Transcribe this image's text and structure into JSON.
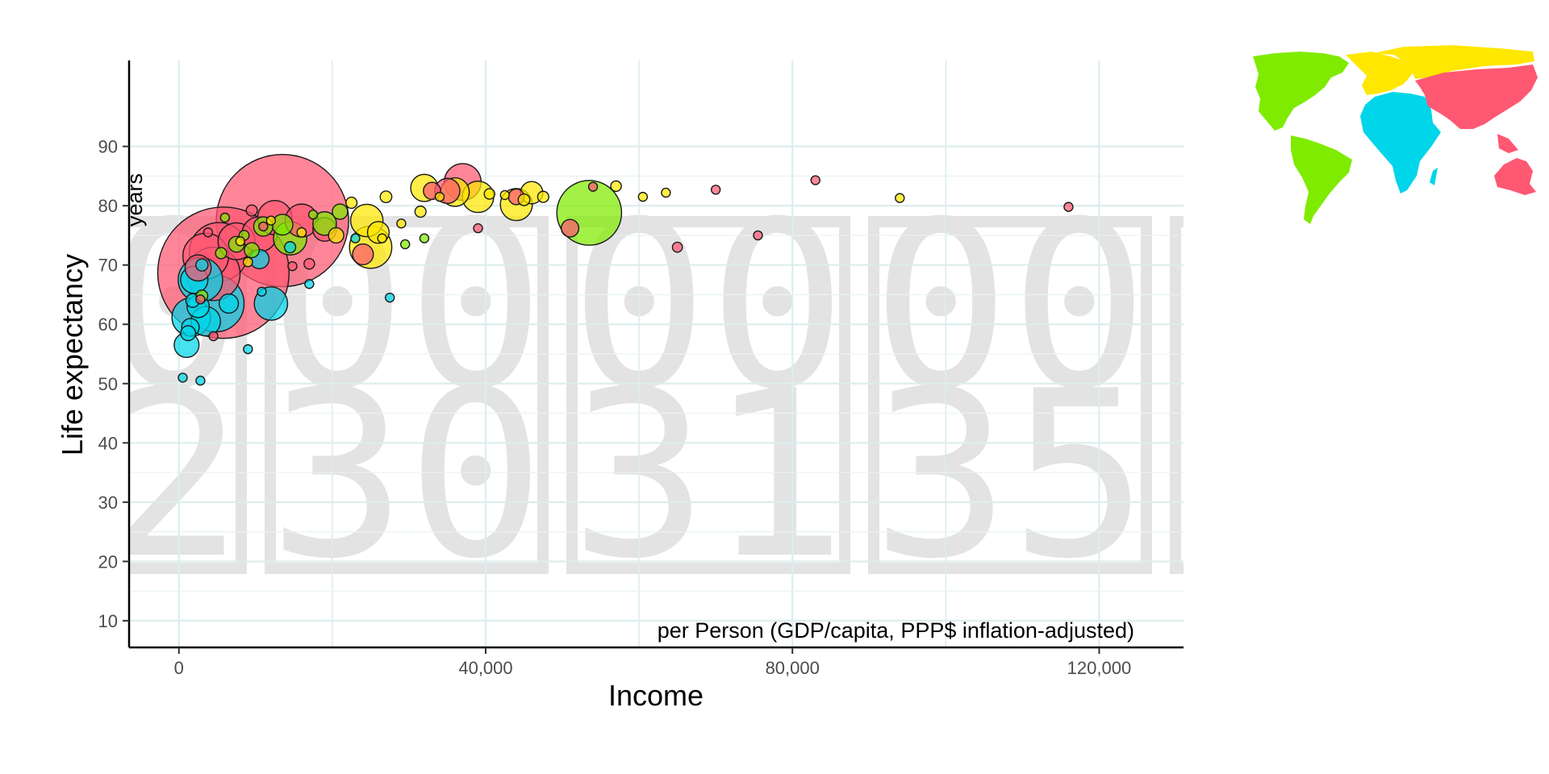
{
  "chart_data": {
    "type": "scatter",
    "title": "",
    "xlabel": "Income",
    "ylabel": "Life expectancy",
    "x_note": "per Person (GDP/capita, PPP$ inflation-adjusted)",
    "y_note": "years",
    "xlim": [
      -6500,
      131000
    ],
    "ylim": [
      5.5,
      104.5
    ],
    "x_ticks": [
      0,
      40000,
      80000,
      120000
    ],
    "x_tick_labels": [
      "0",
      "40,000",
      "80,000",
      "120,000"
    ],
    "y_ticks": [
      10,
      20,
      30,
      40,
      50,
      60,
      70,
      80,
      90
    ],
    "y_tick_labels": [
      "10",
      "20",
      "30",
      "40",
      "50",
      "60",
      "70",
      "80",
      "90"
    ],
    "grid": true,
    "background_year": "2030",
    "background_digits": [
      "0",
      "0",
      "0",
      "0"
    ],
    "background_digits_suffix": "",
    "background_label_columns": [
      "0 0",
      "0 0",
      "0 0",
      "0 0"
    ],
    "watermark_top": [
      "00",
      "00",
      "00",
      "00"
    ],
    "watermark_bottom": [
      "32",
      "30",
      "31",
      "35"
    ],
    "region_colors": {
      "asia": "#ff5872",
      "africa": "#00d5e9",
      "americas": "#7feb00",
      "europe": "#ffe700"
    },
    "legend": "world-map, top-right",
    "points": [
      {
        "x": 5800,
        "y": 68.7,
        "pop": 1400,
        "region": "asia"
      },
      {
        "x": 13500,
        "y": 77.5,
        "pop": 1420,
        "region": "asia"
      },
      {
        "x": 5200,
        "y": 72.2,
        "pop": 280,
        "region": "asia"
      },
      {
        "x": 4500,
        "y": 68.5,
        "pop": 230,
        "region": "asia"
      },
      {
        "x": 3500,
        "y": 71.5,
        "pop": 170,
        "region": "asia"
      },
      {
        "x": 10500,
        "y": 75.2,
        "pop": 100,
        "region": "asia"
      },
      {
        "x": 7500,
        "y": 74.0,
        "pop": 110,
        "region": "asia"
      },
      {
        "x": 12500,
        "y": 78.0,
        "pop": 95,
        "region": "asia"
      },
      {
        "x": 2500,
        "y": 69.5,
        "pop": 55,
        "region": "asia"
      },
      {
        "x": 16000,
        "y": 77.5,
        "pop": 88,
        "region": "asia"
      },
      {
        "x": 19000,
        "y": 76.0,
        "pop": 45,
        "region": "asia"
      },
      {
        "x": 24000,
        "y": 71.8,
        "pop": 35,
        "region": "asia"
      },
      {
        "x": 35000,
        "y": 82.5,
        "pop": 51,
        "region": "asia"
      },
      {
        "x": 37000,
        "y": 84.0,
        "pop": 110,
        "region": "asia"
      },
      {
        "x": 33000,
        "y": 82.5,
        "pop": 24,
        "region": "asia"
      },
      {
        "x": 44000,
        "y": 81.5,
        "pop": 20,
        "region": "asia"
      },
      {
        "x": 51000,
        "y": 76.2,
        "pop": 25,
        "region": "asia"
      },
      {
        "x": 54000,
        "y": 83.2,
        "pop": 6,
        "region": "asia"
      },
      {
        "x": 65000,
        "y": 73.0,
        "pop": 8,
        "region": "asia"
      },
      {
        "x": 70000,
        "y": 82.7,
        "pop": 4,
        "region": "asia"
      },
      {
        "x": 75500,
        "y": 75.0,
        "pop": 2,
        "region": "asia"
      },
      {
        "x": 83000,
        "y": 84.3,
        "pop": 5,
        "region": "asia"
      },
      {
        "x": 116000,
        "y": 79.8,
        "pop": 3,
        "region": "asia"
      },
      {
        "x": 39000,
        "y": 76.2,
        "pop": 5,
        "region": "asia"
      },
      {
        "x": 17000,
        "y": 70.2,
        "pop": 9,
        "region": "asia"
      },
      {
        "x": 14800,
        "y": 69.8,
        "pop": 5,
        "region": "asia"
      },
      {
        "x": 9500,
        "y": 79.2,
        "pop": 10,
        "region": "asia"
      },
      {
        "x": 4500,
        "y": 58.0,
        "pop": 6,
        "region": "asia"
      },
      {
        "x": 2800,
        "y": 64.2,
        "pop": 4,
        "region": "asia"
      },
      {
        "x": 11000,
        "y": 76.5,
        "pop": 3,
        "region": "asia"
      },
      {
        "x": 3800,
        "y": 75.5,
        "pop": 3,
        "region": "asia"
      },
      {
        "x": 2500,
        "y": 63.0,
        "pop": 40,
        "region": "africa"
      },
      {
        "x": 4800,
        "y": 63.5,
        "pop": 260,
        "region": "africa"
      },
      {
        "x": 1600,
        "y": 61.2,
        "pop": 120,
        "region": "africa"
      },
      {
        "x": 12000,
        "y": 63.5,
        "pop": 90,
        "region": "africa"
      },
      {
        "x": 2800,
        "y": 67.5,
        "pop": 160,
        "region": "africa"
      },
      {
        "x": 1000,
        "y": 56.5,
        "pop": 50,
        "region": "africa"
      },
      {
        "x": 2000,
        "y": 67.5,
        "pop": 60,
        "region": "africa"
      },
      {
        "x": 3500,
        "y": 60.5,
        "pop": 70,
        "region": "africa"
      },
      {
        "x": 6500,
        "y": 63.5,
        "pop": 30,
        "region": "africa"
      },
      {
        "x": 10500,
        "y": 71.0,
        "pop": 30,
        "region": "africa"
      },
      {
        "x": 500,
        "y": 51.0,
        "pop": 5,
        "region": "africa"
      },
      {
        "x": 2800,
        "y": 50.5,
        "pop": 4,
        "region": "africa"
      },
      {
        "x": 9000,
        "y": 55.8,
        "pop": 3,
        "region": "africa"
      },
      {
        "x": 10800,
        "y": 65.5,
        "pop": 4,
        "region": "africa"
      },
      {
        "x": 27500,
        "y": 64.5,
        "pop": 3,
        "region": "africa"
      },
      {
        "x": 14500,
        "y": 73.0,
        "pop": 10,
        "region": "africa"
      },
      {
        "x": 1500,
        "y": 59.5,
        "pop": 25,
        "region": "africa"
      },
      {
        "x": 1200,
        "y": 58.5,
        "pop": 18,
        "region": "africa"
      },
      {
        "x": 3000,
        "y": 70.0,
        "pop": 12,
        "region": "africa"
      },
      {
        "x": 1800,
        "y": 64.0,
        "pop": 15,
        "region": "africa"
      },
      {
        "x": 17000,
        "y": 66.8,
        "pop": 4,
        "region": "africa"
      },
      {
        "x": 23000,
        "y": 74.5,
        "pop": 3,
        "region": "africa"
      },
      {
        "x": 53500,
        "y": 78.8,
        "pop": 340,
        "region": "americas"
      },
      {
        "x": 14500,
        "y": 74.5,
        "pop": 90,
        "region": "americas"
      },
      {
        "x": 19000,
        "y": 77.0,
        "pop": 45,
        "region": "americas"
      },
      {
        "x": 21000,
        "y": 79.0,
        "pop": 19,
        "region": "americas"
      },
      {
        "x": 13500,
        "y": 76.8,
        "pop": 35,
        "region": "americas"
      },
      {
        "x": 11000,
        "y": 76.5,
        "pop": 30,
        "region": "americas"
      },
      {
        "x": 9500,
        "y": 72.5,
        "pop": 18,
        "region": "americas"
      },
      {
        "x": 7500,
        "y": 73.5,
        "pop": 20,
        "region": "americas"
      },
      {
        "x": 5500,
        "y": 72.0,
        "pop": 10,
        "region": "americas"
      },
      {
        "x": 17500,
        "y": 78.5,
        "pop": 5,
        "region": "americas"
      },
      {
        "x": 6000,
        "y": 78.0,
        "pop": 4,
        "region": "americas"
      },
      {
        "x": 8500,
        "y": 75.0,
        "pop": 8,
        "region": "americas"
      },
      {
        "x": 3000,
        "y": 64.8,
        "pop": 11,
        "region": "americas"
      },
      {
        "x": 32000,
        "y": 74.5,
        "pop": 2,
        "region": "americas"
      },
      {
        "x": 29500,
        "y": 73.5,
        "pop": 1,
        "region": "americas"
      },
      {
        "x": 46000,
        "y": 82.2,
        "pop": 40,
        "region": "europe"
      },
      {
        "x": 39000,
        "y": 81.5,
        "pop": 80,
        "region": "europe"
      },
      {
        "x": 44000,
        "y": 80.2,
        "pop": 83,
        "region": "europe"
      },
      {
        "x": 36000,
        "y": 82.3,
        "pop": 66,
        "region": "europe"
      },
      {
        "x": 32000,
        "y": 83.0,
        "pop": 60,
        "region": "europe"
      },
      {
        "x": 25000,
        "y": 73.0,
        "pop": 145,
        "region": "europe"
      },
      {
        "x": 24500,
        "y": 77.5,
        "pop": 85,
        "region": "europe"
      },
      {
        "x": 26000,
        "y": 75.5,
        "pop": 38,
        "region": "europe"
      },
      {
        "x": 31500,
        "y": 79.0,
        "pop": 10,
        "region": "europe"
      },
      {
        "x": 47500,
        "y": 81.5,
        "pop": 10,
        "region": "europe"
      },
      {
        "x": 57000,
        "y": 83.3,
        "pop": 9,
        "region": "europe"
      },
      {
        "x": 60500,
        "y": 81.5,
        "pop": 5,
        "region": "europe"
      },
      {
        "x": 63500,
        "y": 82.2,
        "pop": 5,
        "region": "europe"
      },
      {
        "x": 94000,
        "y": 81.3,
        "pop": 0.6,
        "region": "europe"
      },
      {
        "x": 27000,
        "y": 81.5,
        "pop": 11,
        "region": "europe"
      },
      {
        "x": 22500,
        "y": 80.5,
        "pop": 10,
        "region": "europe"
      },
      {
        "x": 20500,
        "y": 75.0,
        "pop": 19,
        "region": "europe"
      },
      {
        "x": 16000,
        "y": 75.5,
        "pop": 7,
        "region": "europe"
      },
      {
        "x": 12000,
        "y": 77.5,
        "pop": 4,
        "region": "europe"
      },
      {
        "x": 29000,
        "y": 77.0,
        "pop": 4,
        "region": "europe"
      },
      {
        "x": 26500,
        "y": 74.5,
        "pop": 3,
        "region": "europe"
      },
      {
        "x": 8000,
        "y": 74.0,
        "pop": 3,
        "region": "europe"
      },
      {
        "x": 42500,
        "y": 81.8,
        "pop": 6,
        "region": "europe"
      },
      {
        "x": 45000,
        "y": 81.0,
        "pop": 11,
        "region": "europe"
      },
      {
        "x": 40500,
        "y": 82.0,
        "pop": 9,
        "region": "europe"
      },
      {
        "x": 34000,
        "y": 81.5,
        "pop": 2,
        "region": "europe"
      },
      {
        "x": 9000,
        "y": 70.5,
        "pop": 7,
        "region": "europe"
      }
    ]
  }
}
